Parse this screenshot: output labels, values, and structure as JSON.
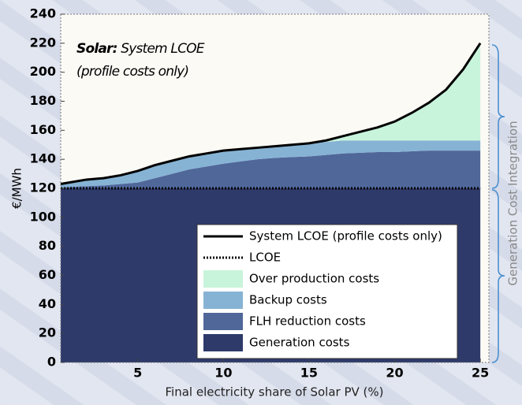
{
  "chart_data": {
    "type": "stacked_area",
    "annotation": [
      "Solar:",
      "System LCOE",
      "(profile costs only)"
    ],
    "x_label": "Final electricity share of Solar PV (%)",
    "y_label": "€/MWh",
    "side_label": "Generation Cost Integration",
    "x": [
      0.5,
      1,
      2,
      3,
      4,
      5,
      6,
      7,
      8,
      9,
      10,
      11,
      12,
      13,
      14,
      15,
      16,
      17,
      18,
      19,
      20,
      21,
      22,
      23,
      24,
      25
    ],
    "xlim": [
      0.5,
      25.5
    ],
    "xticks": [
      5,
      10,
      15,
      20,
      25
    ],
    "ylim": [
      0,
      240
    ],
    "yticks": [
      0,
      20,
      40,
      60,
      80,
      100,
      120,
      140,
      160,
      180,
      200,
      220,
      240
    ],
    "series": [
      {
        "name": "Generation costs",
        "color": "#2e3a6a",
        "values": [
          120,
          120,
          120,
          120,
          120,
          120,
          120,
          120,
          120,
          120,
          120,
          120,
          120,
          120,
          120,
          120,
          120,
          120,
          120,
          120,
          120,
          120,
          120,
          120,
          120,
          120
        ]
      },
      {
        "name": "FLH reduction costs",
        "color": "#50679a",
        "values": [
          0.5,
          1,
          1.5,
          2,
          3,
          4,
          7,
          10,
          13,
          15,
          17,
          18.5,
          20,
          21,
          21.5,
          22,
          23,
          24,
          24.5,
          25,
          25,
          25.5,
          26,
          26,
          26,
          26
        ]
      },
      {
        "name": "Backup costs",
        "color": "#86b3d4",
        "values": [
          2.5,
          3,
          4.5,
          5,
          6,
          8,
          9,
          9,
          9,
          9,
          9,
          8.5,
          8,
          8,
          8.5,
          9,
          9,
          9,
          8.5,
          8,
          8,
          7.5,
          7,
          7,
          7,
          7
        ]
      },
      {
        "name": "Over production costs",
        "color": "#c8f4dc",
        "values": [
          0,
          0,
          0,
          0,
          0,
          0,
          0,
          0,
          0,
          0,
          0,
          0,
          0,
          0,
          0,
          0,
          1,
          3,
          6,
          9,
          13,
          19,
          26,
          35,
          49,
          67
        ]
      }
    ],
    "lines": [
      {
        "name": "System LCOE (profile costs only)",
        "color": "#000000",
        "dash": false,
        "values": [
          123,
          124,
          126,
          127,
          129,
          132,
          136,
          139,
          142,
          144,
          146,
          147,
          148,
          149,
          150,
          151,
          153,
          156,
          159,
          162,
          166,
          172,
          179,
          188,
          202,
          220
        ]
      },
      {
        "name": "LCOE",
        "color": "#000000",
        "dash": true,
        "values": [
          120,
          120,
          120,
          120,
          120,
          120,
          120,
          120,
          120,
          120,
          120,
          120,
          120,
          120,
          120,
          120,
          120,
          120,
          120,
          120,
          120,
          120,
          120,
          120,
          120,
          120
        ]
      }
    ]
  }
}
